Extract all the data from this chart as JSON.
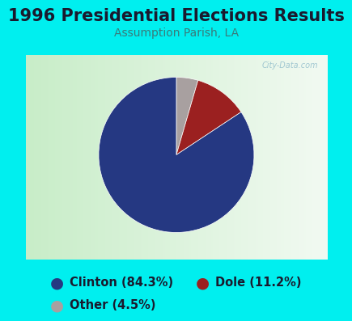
{
  "title": "1996 Presidential Elections Results",
  "subtitle": "Assumption Parish, LA",
  "slices": [
    84.3,
    11.2,
    4.5
  ],
  "labels": [
    "Clinton (84.3%)",
    "Dole (11.2%)",
    "Other (4.5%)"
  ],
  "colors": [
    "#253882",
    "#9B2020",
    "#A8A0A0"
  ],
  "startangle": 90,
  "background_color": "#00EFEF",
  "chart_bg_left": "#d8f0d8",
  "chart_bg_right": "#f0f8f0",
  "title_color": "#1a1a2e",
  "subtitle_color": "#3a7a7a",
  "title_fontsize": 15,
  "subtitle_fontsize": 10,
  "legend_fontsize": 10.5,
  "watermark": "City-Data.com"
}
